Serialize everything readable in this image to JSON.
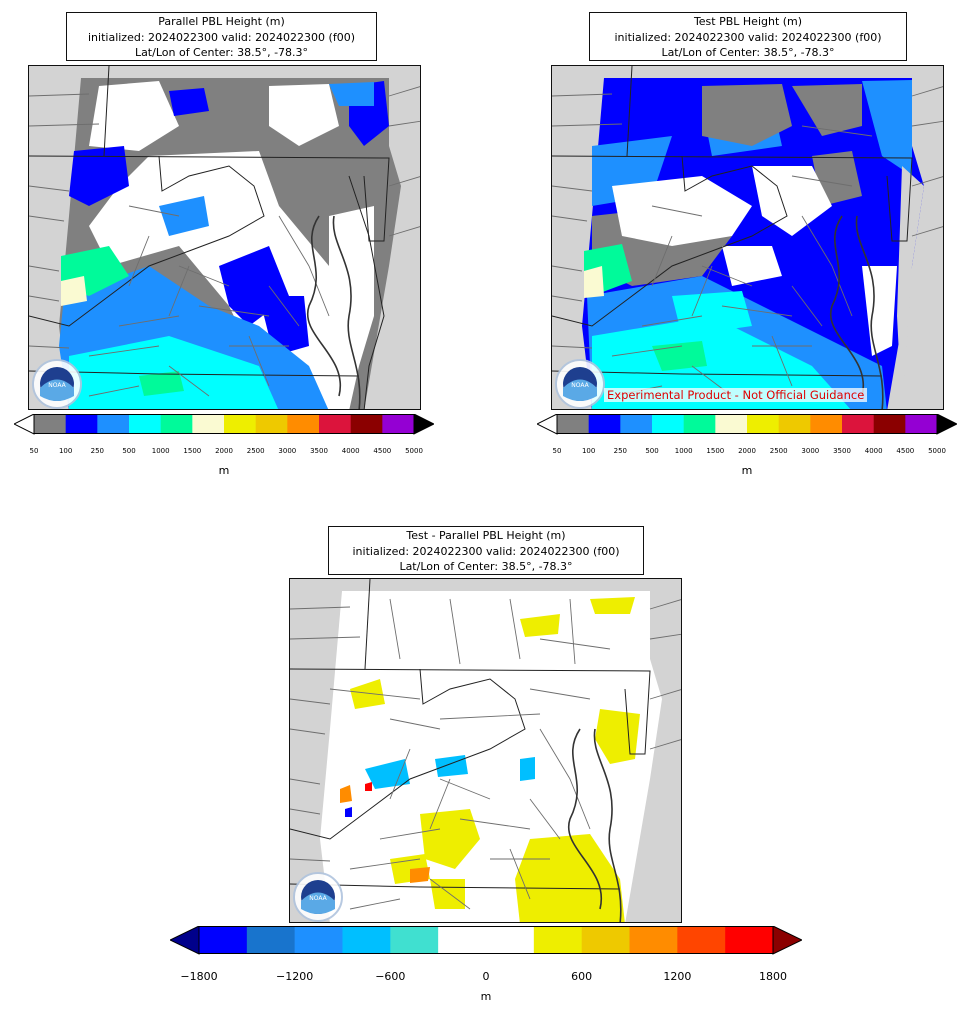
{
  "panels": [
    {
      "id": "parallel",
      "title_line1": "Parallel PBL Height (m)",
      "title_line2": "initialized: 2024022300 valid: 2024022300 (f00)",
      "title_line3": "Lat/Lon of Center: 38.5°, -78.3°",
      "logo": "noaa-logo"
    },
    {
      "id": "test",
      "title_line1": "Test PBL Height (m)",
      "title_line2": "initialized: 2024022300 valid: 2024022300 (f00)",
      "title_line3": "Lat/Lon of Center: 38.5°, -78.3°",
      "watermark": "Experimental Product - Not Official Guidance",
      "logo": "noaa-logo"
    },
    {
      "id": "difference",
      "title_line1": "Test - Parallel PBL Height (m)",
      "title_line2": "initialized: 2024022300 valid: 2024022300 (f00)",
      "title_line3": "Lat/Lon of Center: 38.5°, -78.3°",
      "logo": "noaa-logo"
    }
  ],
  "colorbar_height": {
    "under_color": "#ffffff",
    "over_color": "#000000",
    "colors": [
      "#808080",
      "#0000ff",
      "#1e90ff",
      "#00ffff",
      "#00fa9a",
      "#fafad2",
      "#eeee00",
      "#eec900",
      "#ff8c00",
      "#dc143c",
      "#8b0000",
      "#9400d3"
    ],
    "ticks": [
      "50",
      "100",
      "250",
      "500",
      "1000",
      "1500",
      "2000",
      "2500",
      "3000",
      "3500",
      "4000",
      "4500",
      "5000"
    ],
    "unit": "m"
  },
  "colorbar_diff": {
    "under_color": "#00008b",
    "over_color": "#8b0000",
    "colors": [
      "#0000ff",
      "#1874cd",
      "#1e90ff",
      "#00bfff",
      "#40e0d0",
      "#ffffff",
      "#ffffff",
      "#eeee00",
      "#eec900",
      "#ff8c00",
      "#ff4500",
      "#ff0000"
    ],
    "ticks": [
      "−1800",
      "−1200",
      "−600",
      "0",
      "600",
      "1200",
      "1800"
    ],
    "unit": "m"
  }
}
